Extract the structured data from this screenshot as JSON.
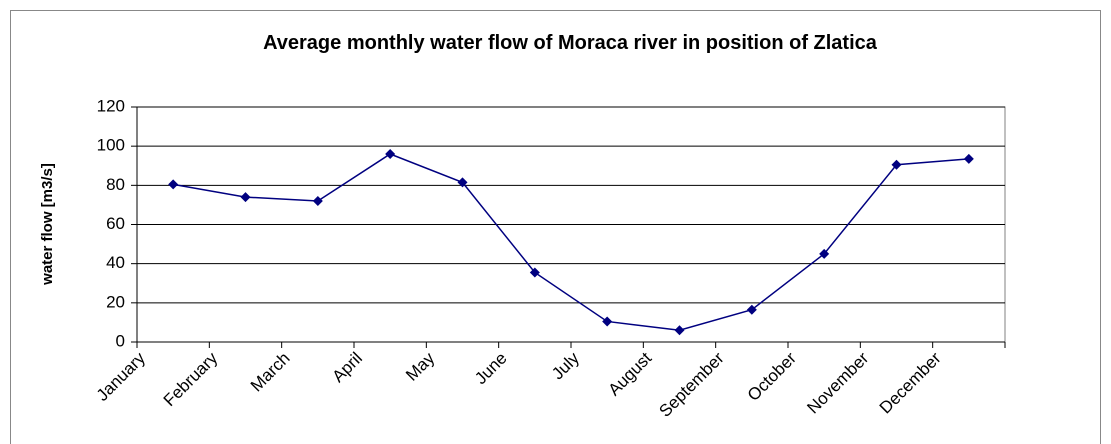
{
  "chart_data": {
    "type": "line",
    "title": "Average monthly water flow of Moraca river in position of Zlatica",
    "y_label": "water flow [m3/s]",
    "categories": [
      "January",
      "February",
      "March",
      "April",
      "May",
      "June",
      "July",
      "August",
      "September",
      "October",
      "November",
      "December"
    ],
    "values": [
      80.5,
      74,
      72,
      96,
      81.5,
      35.5,
      10.5,
      6,
      16.5,
      45,
      90.5,
      93.5
    ],
    "color": "#000080",
    "ylim": [
      0,
      120
    ],
    "yticks": [
      0,
      20,
      40,
      60,
      80,
      100,
      120
    ],
    "grid": true
  }
}
